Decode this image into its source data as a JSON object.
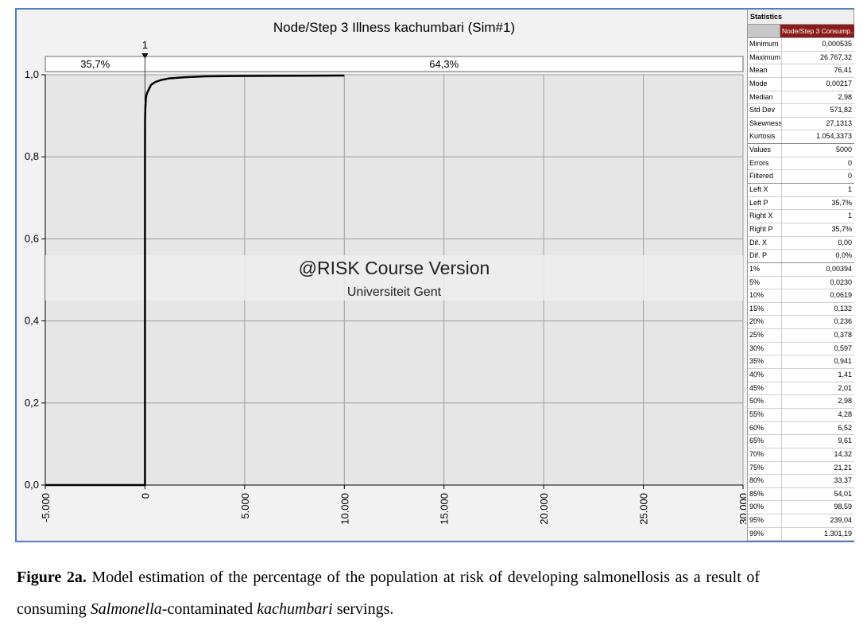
{
  "chart_data": {
    "type": "line",
    "title": "Node/Step 3 Illness kachumbari (Sim#1)",
    "xlim": [
      -5000,
      30000
    ],
    "ylim": [
      0,
      1.0
    ],
    "x_ticks": [
      "-5.000",
      "0",
      "5.000",
      "10.000",
      "15.000",
      "20.000",
      "25.000",
      "30.000"
    ],
    "x_tick_values": [
      -5000,
      0,
      5000,
      10000,
      15000,
      20000,
      25000,
      30000
    ],
    "y_ticks": [
      "0,0",
      "0,2",
      "0,4",
      "0,6",
      "0,8",
      "1,0"
    ],
    "y_tick_values": [
      0,
      0.2,
      0.4,
      0.6,
      0.8,
      1.0
    ],
    "grid": true,
    "series": [
      {
        "x": [
          -5000,
          0,
          0,
          0,
          5,
          20,
          50,
          100,
          200,
          300,
          500,
          800,
          1200,
          2000,
          3000,
          5000,
          10000
        ],
        "y": [
          0,
          0,
          0.45,
          0.76,
          0.89,
          0.92,
          0.945,
          0.955,
          0.965,
          0.975,
          0.982,
          0.987,
          0.991,
          0.994,
          0.996,
          0.997,
          0.998
        ]
      }
    ],
    "delimiter": {
      "marker_label": "1",
      "x": 1,
      "left_pct": "35,7%",
      "right_pct": "64,3%"
    },
    "watermark": {
      "line1": "@RISK Course Version",
      "line2": "Universiteit Gent"
    }
  },
  "statistics": {
    "title": "Statistics",
    "column": "Node/Step 3 Consump...",
    "rows": [
      {
        "k": "Minimum",
        "v": "0,000535"
      },
      {
        "k": "Maximum",
        "v": "26.767,32"
      },
      {
        "k": "Mean",
        "v": "76,41"
      },
      {
        "k": "Mode",
        "v": "0,00217"
      },
      {
        "k": "Median",
        "v": "2,98"
      },
      {
        "k": "Std Dev",
        "v": "571,82"
      },
      {
        "k": "Skewness",
        "v": "27,1313"
      },
      {
        "k": "Kurtosis",
        "v": "1.054,3373",
        "sep": true
      },
      {
        "k": "Values",
        "v": "5000"
      },
      {
        "k": "Errors",
        "v": "0"
      },
      {
        "k": "Filtered",
        "v": "0",
        "sep": true
      },
      {
        "k": "Left X",
        "v": "1"
      },
      {
        "k": "Left P",
        "v": "35,7%"
      },
      {
        "k": "Right X",
        "v": "1"
      },
      {
        "k": "Right P",
        "v": "35,7%"
      },
      {
        "k": "Dif. X",
        "v": "0,00"
      },
      {
        "k": "Dif. P",
        "v": "0,0%",
        "sep": true
      },
      {
        "k": "1%",
        "v": "0,00394"
      },
      {
        "k": "5%",
        "v": "0,0230"
      },
      {
        "k": "10%",
        "v": "0,0619"
      },
      {
        "k": "15%",
        "v": "0,132"
      },
      {
        "k": "20%",
        "v": "0,236"
      },
      {
        "k": "25%",
        "v": "0,378"
      },
      {
        "k": "30%",
        "v": "0,597"
      },
      {
        "k": "35%",
        "v": "0,941"
      },
      {
        "k": "40%",
        "v": "1,41"
      },
      {
        "k": "45%",
        "v": "2,01"
      },
      {
        "k": "50%",
        "v": "2,98"
      },
      {
        "k": "55%",
        "v": "4,28"
      },
      {
        "k": "60%",
        "v": "6,52"
      },
      {
        "k": "65%",
        "v": "9,61"
      },
      {
        "k": "70%",
        "v": "14,32"
      },
      {
        "k": "75%",
        "v": "21,21"
      },
      {
        "k": "80%",
        "v": "33,37"
      },
      {
        "k": "85%",
        "v": "54,01"
      },
      {
        "k": "90%",
        "v": "98,59"
      },
      {
        "k": "95%",
        "v": "239,04"
      },
      {
        "k": "99%",
        "v": "1.301,19"
      }
    ]
  },
  "caption": {
    "lead": "Figure 2a.",
    "part1": " Model estimation of the percentage of the population at risk of developing salmonellosis as a result of consuming ",
    "italic1": "Salmonella",
    "part2": "-contaminated ",
    "italic2": "kachumbari",
    "part3": " servings."
  },
  "colors": {
    "frame_border": "#4f7fc0",
    "plot_bg": "#e6e6e6",
    "curve": "#000000",
    "stats_header": "#8b1a1a"
  }
}
